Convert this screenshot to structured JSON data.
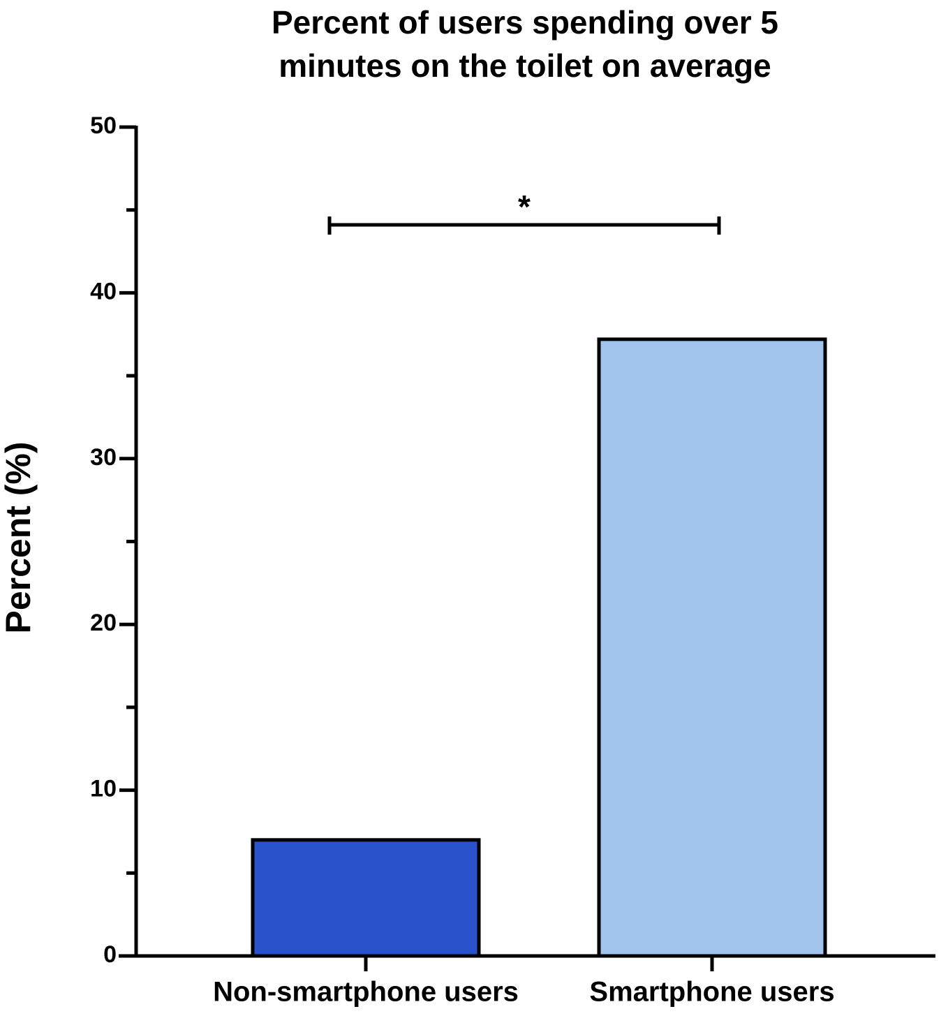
{
  "chart_data": {
    "type": "bar",
    "title": [
      "Percent of users spending over 5",
      "minutes on the toilet on average"
    ],
    "ylabel": "Percent  (%)",
    "categories": [
      "Non-smartphone users",
      "Smartphone users"
    ],
    "series": [
      {
        "name": null,
        "colors": [
          "#2952cc",
          "#a0c4ec"
        ],
        "values": [
          7,
          37.2
        ]
      }
    ],
    "annotation": "*",
    "ylim": [
      0,
      50
    ],
    "yticks": [
      0,
      10,
      20,
      30,
      40,
      50
    ],
    "yticks_minor": [
      5,
      15,
      25,
      35,
      45
    ]
  }
}
